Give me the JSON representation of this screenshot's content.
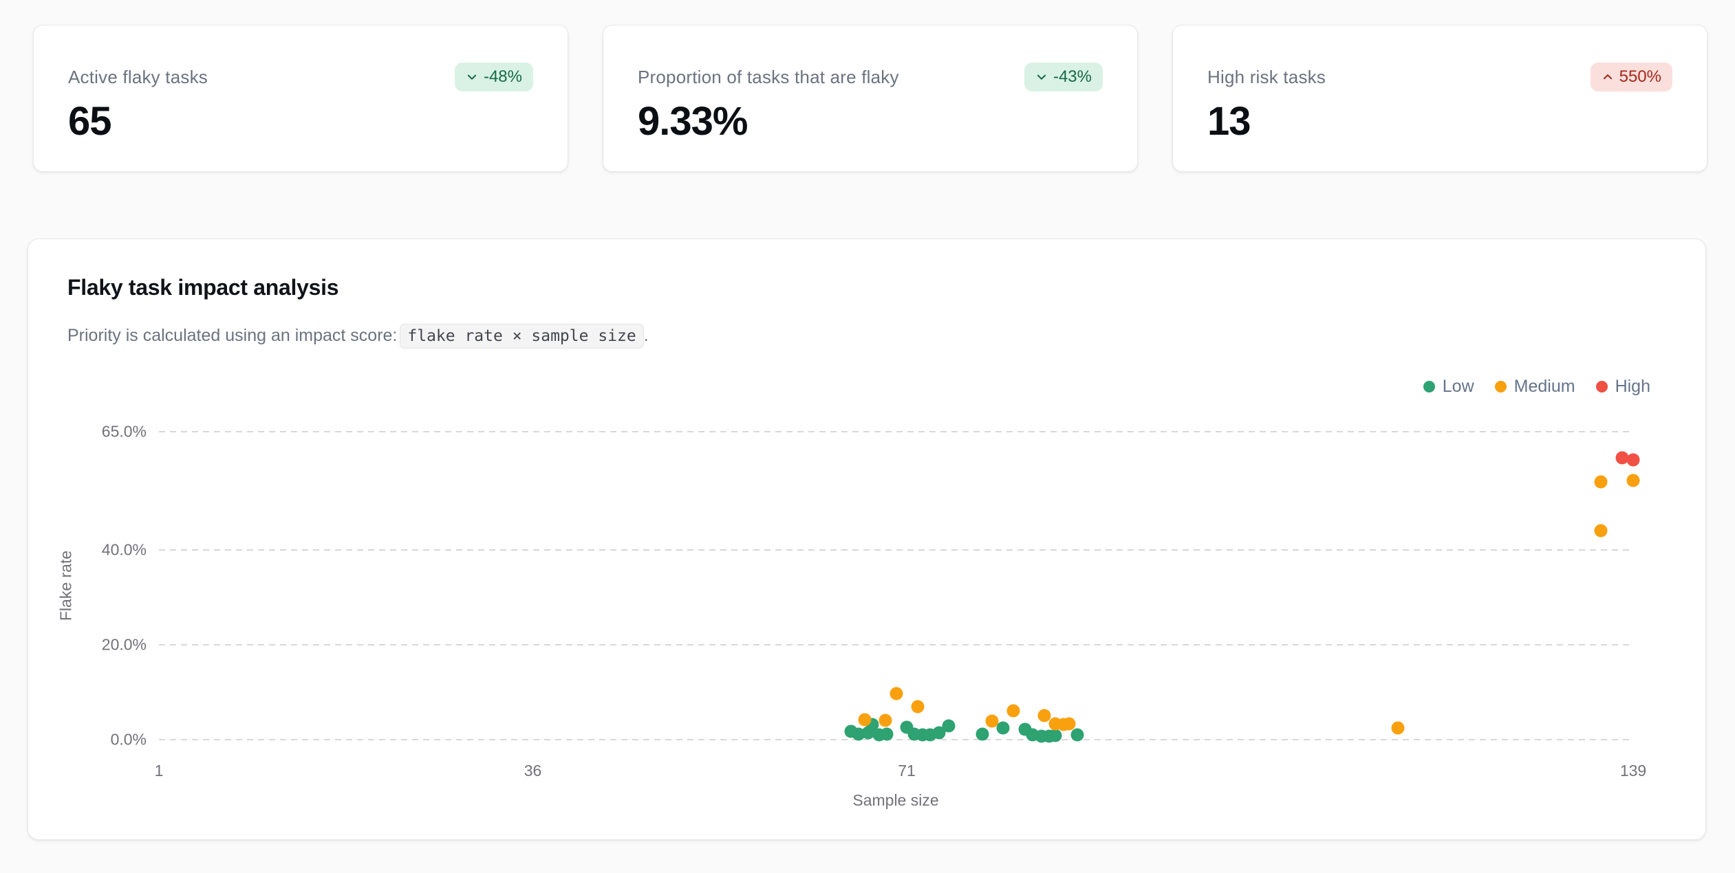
{
  "stats": [
    {
      "label": "Active flaky tasks",
      "value": "65",
      "delta": "-48%",
      "direction": "down",
      "tone": "positive"
    },
    {
      "label": "Proportion of tasks that are flaky",
      "value": "9.33%",
      "delta": "-43%",
      "direction": "down",
      "tone": "positive"
    },
    {
      "label": "High risk tasks",
      "value": "13",
      "delta": "550%",
      "direction": "up",
      "tone": "negative"
    }
  ],
  "chart": {
    "title": "Flaky task impact analysis",
    "subtitle_prefix": "Priority is calculated using an impact score:",
    "subtitle_code": "flake rate × sample size",
    "subtitle_suffix": "."
  },
  "colors": {
    "low": "#2ea271",
    "medium": "#f9a00f",
    "high": "#f15044",
    "badge_positive_bg": "#d9f2e5",
    "badge_positive_text": "#166a46",
    "badge_negative_bg": "#fbdfdc",
    "badge_negative_text": "#a5281b",
    "gridline": "#d7d7dc"
  },
  "chart_data": {
    "type": "scatter",
    "title": "Flaky task impact analysis",
    "xlabel": "Sample size",
    "ylabel": "Flake rate",
    "x_range": [
      1,
      139
    ],
    "y_range": [
      0,
      65
    ],
    "x_ticks": [
      1,
      36,
      71,
      139
    ],
    "y_ticks": [
      {
        "value": 0,
        "label": "0.0%"
      },
      {
        "value": 20,
        "label": "20.0%"
      },
      {
        "value": 40,
        "label": "40.0%"
      },
      {
        "value": 65,
        "label": "65.0%"
      }
    ],
    "grid": "horizontal-dashed",
    "legend_position": "top-right",
    "series": [
      {
        "name": "Low",
        "color": "#2ea271",
        "points": [
          [
            65.8,
            1.7
          ],
          [
            66.5,
            1.2
          ],
          [
            67.4,
            1.5
          ],
          [
            67.8,
            3.2
          ],
          [
            68.4,
            1.0
          ],
          [
            69.1,
            1.2
          ],
          [
            71.0,
            2.6
          ],
          [
            71.7,
            1.2
          ],
          [
            72.5,
            1.0
          ],
          [
            73.2,
            1.0
          ],
          [
            74.0,
            1.5
          ],
          [
            74.9,
            2.9
          ],
          [
            78.1,
            1.2
          ],
          [
            80.0,
            2.5
          ],
          [
            82.1,
            2.2
          ],
          [
            82.8,
            1.0
          ],
          [
            83.6,
            0.7
          ],
          [
            84.3,
            0.7
          ],
          [
            84.9,
            0.9
          ],
          [
            87.0,
            1.0
          ]
        ]
      },
      {
        "name": "Medium",
        "color": "#f9a00f",
        "points": [
          [
            67.1,
            4.2
          ],
          [
            69.0,
            4.1
          ],
          [
            70.0,
            9.7
          ],
          [
            72.0,
            7.0
          ],
          [
            79.0,
            3.9
          ],
          [
            81.0,
            6.1
          ],
          [
            83.9,
            5.1
          ],
          [
            84.9,
            3.3
          ],
          [
            85.7,
            3.2
          ],
          [
            86.2,
            3.3
          ],
          [
            117.0,
            2.5
          ],
          [
            136.0,
            44.1
          ],
          [
            136.0,
            54.4
          ],
          [
            139.0,
            54.7
          ]
        ]
      },
      {
        "name": "High",
        "color": "#f15044",
        "points": [
          [
            138.0,
            59.5
          ],
          [
            139.0,
            59.1
          ]
        ]
      }
    ]
  }
}
